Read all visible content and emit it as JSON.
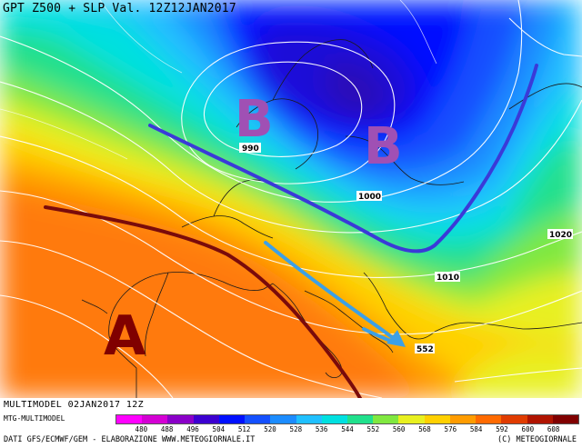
{
  "title": "GPT Z500 + SLP Val. 12Z12JAN2017",
  "footer": {
    "run": "MULTIMODEL 02JAN2017 12Z",
    "model": "MTG-MULTIMODEL",
    "credits_left": "DATI GFS/ECMWF/GEM - ELABORAZIONE WWW.METEOGIORNALE.IT",
    "credits_right": "(C) METEOGIORNALE"
  },
  "legend": {
    "ticks": [
      "480",
      "488",
      "496",
      "504",
      "512",
      "520",
      "528",
      "536",
      "544",
      "552",
      "560",
      "568",
      "576",
      "584",
      "592",
      "600",
      "608"
    ],
    "colors": [
      "#ff00ff",
      "#d400d4",
      "#8a00c8",
      "#3c00d0",
      "#0010ff",
      "#1450ff",
      "#1c8cff",
      "#20c0ff",
      "#00e0e0",
      "#20e08c",
      "#80e840",
      "#e8f020",
      "#ffd000",
      "#ff9c00",
      "#ff6a00",
      "#e03c00",
      "#b01400",
      "#800000"
    ]
  },
  "map": {
    "pressure_labels": [
      "990",
      "1000",
      "1010",
      "1020"
    ],
    "geopotential_label": "552",
    "annotations": {
      "lows": [
        "B",
        "B"
      ],
      "high": "A"
    },
    "colors": {
      "low_letters": "#a050b4",
      "high_letter": "#800000",
      "trough_axis": "#3a3ad8",
      "ridge_axis": "#7a0b0b",
      "flow_arrow": "#3ca0e6"
    }
  }
}
